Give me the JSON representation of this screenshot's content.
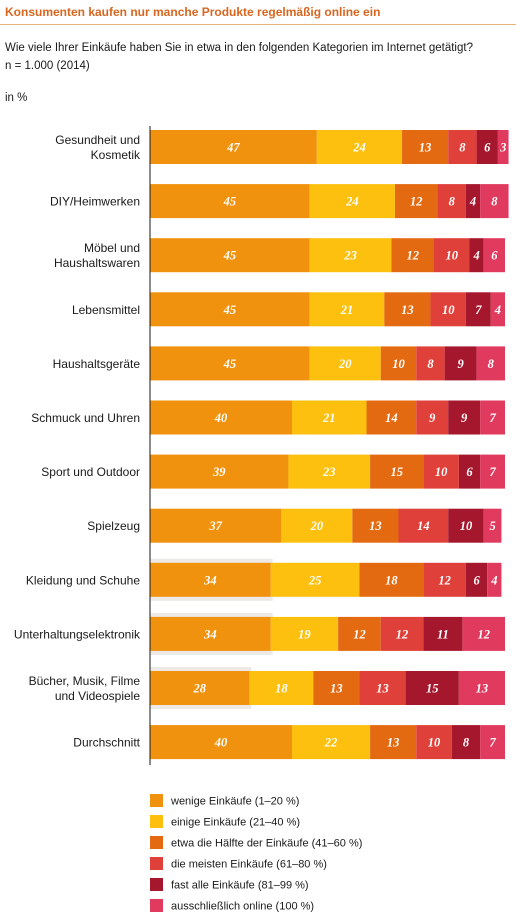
{
  "title": "Konsumenten kaufen nur manche Produkte regelmäßig online ein",
  "question": "Wie viele Ihrer Einkäufe haben Sie in etwa in den folgenden Kategorien im Internet getätigt?",
  "sample": "n = 1.000 (2014)",
  "unit": "in %",
  "chart_data": {
    "type": "bar",
    "orientation": "horizontal",
    "stacked": true,
    "xlim": [
      0,
      100
    ],
    "categories": [
      "Gesundheit und\nKosmetik",
      "DIY/Heimwerken",
      "Möbel und\nHaushaltswaren",
      "Lebensmittel",
      "Haushaltsgeräte",
      "Schmuck und Uhren",
      "Sport und Outdoor",
      "Spielzeug",
      "Kleidung und Schuhe",
      "Unterhaltungselektronik",
      "Bücher, Musik, Filme\nund Videospiele",
      "Durchschnitt"
    ],
    "series": [
      {
        "name": "wenige Einkäufe (1–20 %)",
        "color": "#f0920d",
        "values": [
          47,
          45,
          45,
          45,
          45,
          40,
          39,
          37,
          34,
          34,
          28,
          40
        ]
      },
      {
        "name": "einige Einkäufe (21–40 %)",
        "color": "#fdc00f",
        "values": [
          24,
          24,
          23,
          21,
          20,
          21,
          23,
          20,
          25,
          19,
          18,
          22
        ]
      },
      {
        "name": "etwa die Hälfte der Einkäufe (41–60 %)",
        "color": "#e46a12",
        "values": [
          13,
          12,
          12,
          13,
          10,
          14,
          15,
          13,
          18,
          12,
          13,
          13
        ]
      },
      {
        "name": "die meisten Einkäufe (61–80 %)",
        "color": "#e0403a",
        "values": [
          8,
          8,
          10,
          10,
          8,
          9,
          10,
          14,
          12,
          12,
          13,
          10
        ]
      },
      {
        "name": "fast alle Einkäufe (81–99 %)",
        "color": "#a5172c",
        "values": [
          6,
          4,
          4,
          7,
          9,
          9,
          6,
          10,
          6,
          11,
          15,
          8
        ]
      },
      {
        "name": "ausschließlich online (100 %)",
        "color": "#e03a5f",
        "values": [
          3,
          8,
          6,
          4,
          8,
          7,
          7,
          5,
          4,
          12,
          13,
          7
        ]
      }
    ],
    "highlight_rows": [
      8,
      9,
      10
    ],
    "highlight_color": "#ece9e6"
  }
}
